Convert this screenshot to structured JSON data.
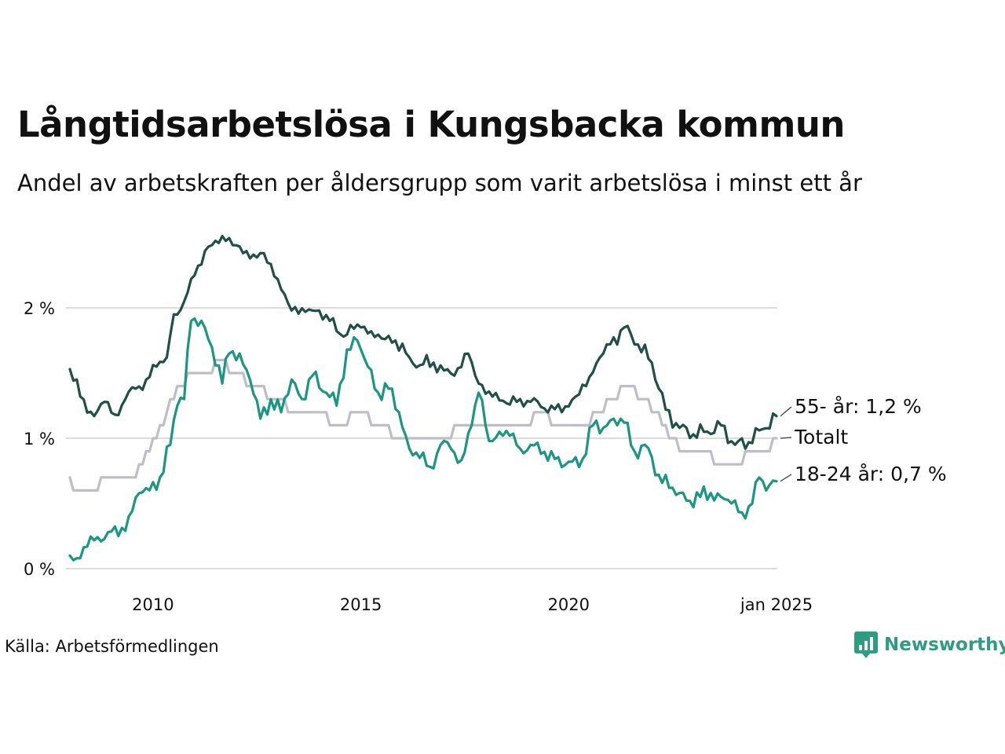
{
  "title": "Långtidsarbetslösa i Kungsbacka kommun",
  "subtitle": "Andel av arbetskraften per åldersgrupp som varit arbetslösa i minst ett år",
  "source": "Källa: Arbetsförmedlingen",
  "brand": "Newsworthy",
  "colors": {
    "age55": "#1f4f45",
    "total": "#bfbdc8",
    "age1824": "#1a9683",
    "grid": "#dcdcdc",
    "brand": "#2e9c83"
  },
  "chart_data": {
    "type": "line",
    "x_start": "2008-01",
    "x_end": "2025-01",
    "xlim": [
      "2008-01",
      "2025-01"
    ],
    "ylim": [
      0,
      2.6
    ],
    "y_ticks": [
      0,
      1,
      2
    ],
    "y_tick_labels": [
      "0 %",
      "1 %",
      "2 %"
    ],
    "x_ticks": [
      "2010-01",
      "2015-01",
      "2020-01",
      "2025-01"
    ],
    "x_tick_labels": [
      "2010",
      "2015",
      "2020",
      "jan 2025"
    ],
    "grid": true,
    "legend": "end-of-line labels",
    "series": [
      {
        "name": "55- år",
        "label": "55- år: 1,2 %",
        "color": "#1f4f45",
        "anchors": [
          [
            "2008-01",
            1.53
          ],
          [
            "2008-04",
            1.32
          ],
          [
            "2008-08",
            1.17
          ],
          [
            "2008-11",
            1.28
          ],
          [
            "2009-02",
            1.18
          ],
          [
            "2009-05",
            1.3
          ],
          [
            "2009-08",
            1.38
          ],
          [
            "2009-11",
            1.45
          ],
          [
            "2010-02",
            1.55
          ],
          [
            "2010-05",
            1.62
          ],
          [
            "2010-07",
            1.95
          ],
          [
            "2010-10",
            2.05
          ],
          [
            "2011-01",
            2.25
          ],
          [
            "2011-05",
            2.47
          ],
          [
            "2011-09",
            2.55
          ],
          [
            "2012-01",
            2.48
          ],
          [
            "2012-05",
            2.38
          ],
          [
            "2012-09",
            2.42
          ],
          [
            "2013-01",
            2.22
          ],
          [
            "2013-05",
            1.98
          ],
          [
            "2013-09",
            1.97
          ],
          [
            "2014-01",
            1.98
          ],
          [
            "2014-04",
            1.9
          ],
          [
            "2014-08",
            1.78
          ],
          [
            "2014-11",
            1.84
          ],
          [
            "2015-01",
            1.85
          ],
          [
            "2015-04",
            1.82
          ],
          [
            "2015-08",
            1.76
          ],
          [
            "2015-11",
            1.75
          ],
          [
            "2016-03",
            1.62
          ],
          [
            "2016-06",
            1.56
          ],
          [
            "2016-10",
            1.58
          ],
          [
            "2017-01",
            1.52
          ],
          [
            "2017-04",
            1.48
          ],
          [
            "2017-08",
            1.65
          ],
          [
            "2017-11",
            1.42
          ],
          [
            "2018-03",
            1.32
          ],
          [
            "2018-07",
            1.27
          ],
          [
            "2018-11",
            1.3
          ],
          [
            "2019-02",
            1.28
          ],
          [
            "2019-05",
            1.24
          ],
          [
            "2019-08",
            1.25
          ],
          [
            "2019-11",
            1.2
          ],
          [
            "2020-03",
            1.32
          ],
          [
            "2020-07",
            1.47
          ],
          [
            "2020-10",
            1.62
          ],
          [
            "2021-01",
            1.72
          ],
          [
            "2021-05",
            1.85
          ],
          [
            "2021-09",
            1.72
          ],
          [
            "2022-01",
            1.58
          ],
          [
            "2022-05",
            1.22
          ],
          [
            "2022-09",
            1.08
          ],
          [
            "2023-01",
            1.03
          ],
          [
            "2023-05",
            1.05
          ],
          [
            "2023-09",
            1.1
          ],
          [
            "2024-01",
            0.95
          ],
          [
            "2024-05",
            0.97
          ],
          [
            "2024-09",
            1.07
          ],
          [
            "2025-01",
            1.17
          ]
        ]
      },
      {
        "name": "Totalt",
        "label": "Totalt",
        "color": "#bfbdc8",
        "anchors": [
          [
            "2008-01",
            0.7
          ],
          [
            "2008-03",
            0.6
          ],
          [
            "2008-08",
            0.6
          ],
          [
            "2008-10",
            0.7
          ],
          [
            "2009-01",
            0.7
          ],
          [
            "2009-07",
            0.7
          ],
          [
            "2009-10",
            0.8
          ],
          [
            "2010-01",
            1.0
          ],
          [
            "2010-04",
            1.1
          ],
          [
            "2010-08",
            1.4
          ],
          [
            "2011-01",
            1.5
          ],
          [
            "2011-05",
            1.5
          ],
          [
            "2011-08",
            1.6
          ],
          [
            "2012-01",
            1.5
          ],
          [
            "2012-06",
            1.4
          ],
          [
            "2013-01",
            1.3
          ],
          [
            "2013-06",
            1.2
          ],
          [
            "2014-01",
            1.2
          ],
          [
            "2014-06",
            1.1
          ],
          [
            "2015-01",
            1.2
          ],
          [
            "2015-06",
            1.1
          ],
          [
            "2016-01",
            1.0
          ],
          [
            "2016-06",
            1.0
          ],
          [
            "2017-01",
            1.0
          ],
          [
            "2017-06",
            1.1
          ],
          [
            "2018-01",
            1.1
          ],
          [
            "2018-06",
            1.1
          ],
          [
            "2019-01",
            1.1
          ],
          [
            "2019-05",
            1.2
          ],
          [
            "2019-09",
            1.1
          ],
          [
            "2020-01",
            1.1
          ],
          [
            "2020-06",
            1.1
          ],
          [
            "2021-01",
            1.3
          ],
          [
            "2021-06",
            1.4
          ],
          [
            "2021-10",
            1.3
          ],
          [
            "2022-03",
            1.2
          ],
          [
            "2022-06",
            1.0
          ],
          [
            "2022-10",
            0.9
          ],
          [
            "2023-04",
            0.9
          ],
          [
            "2023-08",
            0.8
          ],
          [
            "2024-01",
            0.8
          ],
          [
            "2024-06",
            0.9
          ],
          [
            "2024-10",
            0.9
          ],
          [
            "2025-01",
            1.0
          ]
        ]
      },
      {
        "name": "18-24 år",
        "label": "18-24 år: 0,7 %",
        "color": "#1a9683",
        "anchors": [
          [
            "2008-01",
            0.1
          ],
          [
            "2008-03",
            0.08
          ],
          [
            "2008-06",
            0.17
          ],
          [
            "2008-09",
            0.24
          ],
          [
            "2008-12",
            0.28
          ],
          [
            "2009-03",
            0.25
          ],
          [
            "2009-06",
            0.4
          ],
          [
            "2009-09",
            0.58
          ],
          [
            "2009-12",
            0.6
          ],
          [
            "2010-03",
            0.7
          ],
          [
            "2010-06",
            0.95
          ],
          [
            "2010-08",
            1.25
          ],
          [
            "2010-10",
            1.3
          ],
          [
            "2010-12",
            1.9
          ],
          [
            "2011-03",
            1.9
          ],
          [
            "2011-06",
            1.7
          ],
          [
            "2011-09",
            1.42
          ],
          [
            "2011-11",
            1.65
          ],
          [
            "2012-02",
            1.65
          ],
          [
            "2012-05",
            1.45
          ],
          [
            "2012-08",
            1.15
          ],
          [
            "2012-11",
            1.3
          ],
          [
            "2013-02",
            1.2
          ],
          [
            "2013-05",
            1.45
          ],
          [
            "2013-08",
            1.3
          ],
          [
            "2013-11",
            1.48
          ],
          [
            "2014-03",
            1.35
          ],
          [
            "2014-06",
            1.25
          ],
          [
            "2014-09",
            1.68
          ],
          [
            "2014-12",
            1.75
          ],
          [
            "2015-03",
            1.55
          ],
          [
            "2015-06",
            1.35
          ],
          [
            "2015-09",
            1.38
          ],
          [
            "2015-12",
            1.2
          ],
          [
            "2016-03",
            0.92
          ],
          [
            "2016-06",
            0.85
          ],
          [
            "2016-09",
            0.78
          ],
          [
            "2016-12",
            0.95
          ],
          [
            "2017-03",
            0.92
          ],
          [
            "2017-06",
            0.83
          ],
          [
            "2017-09",
            1.1
          ],
          [
            "2017-11",
            1.35
          ],
          [
            "2018-02",
            0.98
          ],
          [
            "2018-05",
            1.05
          ],
          [
            "2018-08",
            1.02
          ],
          [
            "2018-11",
            0.92
          ],
          [
            "2019-02",
            0.95
          ],
          [
            "2019-05",
            0.88
          ],
          [
            "2019-08",
            0.9
          ],
          [
            "2019-11",
            0.78
          ],
          [
            "2020-02",
            0.82
          ],
          [
            "2020-05",
            0.84
          ],
          [
            "2020-08",
            1.1
          ],
          [
            "2020-11",
            1.08
          ],
          [
            "2021-02",
            1.15
          ],
          [
            "2021-05",
            1.12
          ],
          [
            "2021-08",
            0.9
          ],
          [
            "2021-11",
            0.95
          ],
          [
            "2022-03",
            0.72
          ],
          [
            "2022-06",
            0.62
          ],
          [
            "2022-09",
            0.58
          ],
          [
            "2022-12",
            0.52
          ],
          [
            "2023-03",
            0.55
          ],
          [
            "2023-06",
            0.58
          ],
          [
            "2023-09",
            0.55
          ],
          [
            "2023-12",
            0.5
          ],
          [
            "2024-03",
            0.43
          ],
          [
            "2024-06",
            0.5
          ],
          [
            "2024-08",
            0.7
          ],
          [
            "2024-10",
            0.6
          ],
          [
            "2025-01",
            0.67
          ]
        ]
      }
    ]
  }
}
